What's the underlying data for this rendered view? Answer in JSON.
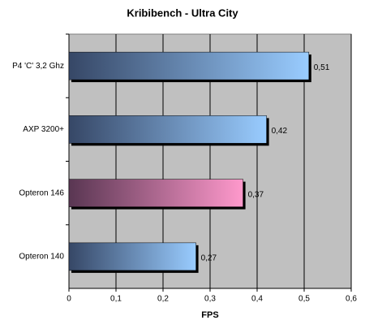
{
  "chart_data": {
    "type": "hbar",
    "title": "Kribibench - Ultra City",
    "x_label": "FPS",
    "categories": [
      "P4 'C' 3,2 Ghz",
      "AXP 3200+",
      "Opteron 146",
      "Opteron 140"
    ],
    "values": [
      0.51,
      0.42,
      0.37,
      0.27
    ],
    "value_labels": [
      "0,51",
      "0,42",
      "0,37",
      "0,27"
    ],
    "colors": [
      "#99ccff",
      "#99ccff",
      "#ff99cc",
      "#99ccff"
    ],
    "xlim": [
      0,
      0.6
    ],
    "xticks": [
      0,
      {
        "value": 0.1,
        "label": "0,1"
      },
      {
        "value": 0.2,
        "label": "0,2"
      },
      {
        "value": 0.3,
        "label": "0,3"
      },
      {
        "value": 0.4,
        "label": "0,4"
      },
      {
        "value": 0.5,
        "label": "0,5"
      },
      {
        "value": 0.6,
        "label": "0,6"
      }
    ],
    "grid": true
  }
}
